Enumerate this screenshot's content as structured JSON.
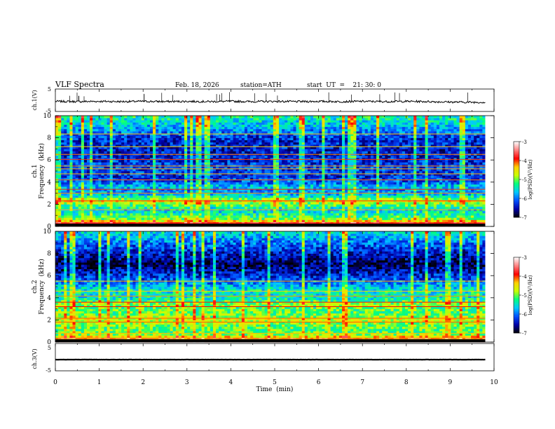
{
  "header": {
    "title": "VLF  Spectra",
    "date": "Feb. 18, 2026",
    "station": "station=ATH",
    "start": "start  UT  =    21: 30: 0"
  },
  "colorbar": {
    "label": "log(PSD)(V²/Hz)",
    "ticks": [
      "-3",
      "-4",
      "-5",
      "-6",
      "-7"
    ],
    "range": [
      -7,
      -3
    ],
    "colors": [
      "#000000",
      "#0000a8",
      "#0050ff",
      "#00c8ff",
      "#00ff80",
      "#c8ff00",
      "#ffd000",
      "#ff0000",
      "#ff8080",
      "#ffffff"
    ]
  },
  "chart_data": [
    {
      "type": "line",
      "title": "",
      "xlabel": "Time  (min)",
      "ylabel": "ch.1(V)",
      "xlim": [
        0,
        9.8
      ],
      "ylim": [
        -5,
        5
      ],
      "y_ticks": [
        "5",
        "-5"
      ],
      "series": [
        {
          "x": [
            0,
            0.5,
            1,
            1.5,
            2,
            2.5,
            3,
            3.5,
            4,
            4.5,
            5,
            5.5,
            6,
            6.5,
            7,
            7.5,
            8,
            8.5,
            9,
            9.5,
            9.8
          ],
          "values": [
            -0.5,
            -0.6,
            -0.5,
            -0.6,
            -0.5,
            -0.6,
            -0.5,
            -0.6,
            -0.5,
            -0.6,
            -0.5,
            -0.6,
            -0.5,
            -0.6,
            -0.5,
            -0.6,
            -0.5,
            -0.6,
            -0.8,
            -0.9,
            -0.9
          ]
        }
      ]
    },
    {
      "type": "heatmap",
      "title": "",
      "ylabel": "Frequency  (kHz)",
      "ylabel_channel": "ch.1",
      "xlim": [
        0,
        9.8
      ],
      "ylim": [
        0,
        10
      ],
      "y_ticks": [
        "0",
        "2",
        "4",
        "6",
        "8",
        "10"
      ],
      "z_label": "log(PSD)(V²/Hz)",
      "z_range": [
        -7,
        -3
      ],
      "profile": [
        {
          "f": 0.3,
          "z": -3.8
        },
        {
          "f": 0.6,
          "z": -4.8
        },
        {
          "f": 1.0,
          "z": -5.3
        },
        {
          "f": 1.5,
          "z": -5.6
        },
        {
          "f": 2.0,
          "z": -5.0
        },
        {
          "f": 2.3,
          "z": -4.6
        },
        {
          "f": 2.8,
          "z": -5.6
        },
        {
          "f": 3.3,
          "z": -5.9
        },
        {
          "f": 3.6,
          "z": -5.6
        },
        {
          "f": 4.0,
          "z": -6.1
        },
        {
          "f": 4.5,
          "z": -6.3
        },
        {
          "f": 5.2,
          "z": -6.2
        },
        {
          "f": 6.0,
          "z": -6.3
        },
        {
          "f": 7.0,
          "z": -6.4
        },
        {
          "f": 8.0,
          "z": -6.3
        },
        {
          "f": 9.0,
          "z": -5.7
        },
        {
          "f": 10.0,
          "z": -5.3
        }
      ],
      "lines_khz": [
        0.3,
        1.5,
        2.3,
        3.0,
        3.35,
        4.2,
        4.75,
        5.2,
        5.45,
        6.05,
        6.5,
        7.2,
        8.35
      ]
    },
    {
      "type": "heatmap",
      "title": "",
      "ylabel": "Frequency  (kHz)",
      "ylabel_channel": "ch.2",
      "xlim": [
        0,
        9.8
      ],
      "ylim": [
        0,
        10
      ],
      "y_ticks": [
        "0",
        "2",
        "4",
        "6",
        "8",
        "10"
      ],
      "z_label": "log(PSD)(V²/Hz)",
      "z_range": [
        -7,
        -3
      ],
      "profile": [
        {
          "f": 0.3,
          "z": -3.8
        },
        {
          "f": 0.6,
          "z": -4.8
        },
        {
          "f": 1.0,
          "z": -5.1
        },
        {
          "f": 1.5,
          "z": -5.0
        },
        {
          "f": 2.0,
          "z": -4.6
        },
        {
          "f": 2.5,
          "z": -5.0
        },
        {
          "f": 3.0,
          "z": -5.1
        },
        {
          "f": 3.5,
          "z": -4.9
        },
        {
          "f": 4.0,
          "z": -5.5
        },
        {
          "f": 4.6,
          "z": -5.4
        },
        {
          "f": 5.3,
          "z": -5.9
        },
        {
          "f": 6.0,
          "z": -6.3
        },
        {
          "f": 7.0,
          "z": -6.8
        },
        {
          "f": 8.0,
          "z": -6.4
        },
        {
          "f": 9.0,
          "z": -6.0
        },
        {
          "f": 10.0,
          "z": -5.5
        }
      ],
      "lines_khz": [
        0.3,
        0.8,
        1.8,
        2.15,
        3.2,
        3.6,
        4.15,
        4.6,
        5.5
      ]
    },
    {
      "type": "line",
      "title": "",
      "xlabel": "Time  (min)",
      "ylabel": "ch.3(V)",
      "xlim": [
        0,
        9.8
      ],
      "ylim": [
        -5,
        5
      ],
      "y_ticks": [
        "5",
        "-5"
      ],
      "x_ticks": [
        "0",
        "1",
        "2",
        "3",
        "4",
        "5",
        "6",
        "7",
        "8",
        "9",
        "10"
      ],
      "series": [
        {
          "x": [
            0,
            1,
            2,
            3,
            4,
            5,
            6,
            7,
            8,
            9,
            9.8
          ],
          "values": [
            -0.9,
            -0.9,
            -0.9,
            -0.9,
            -0.9,
            -0.9,
            -0.9,
            -0.9,
            -0.9,
            -0.9,
            -0.9
          ]
        }
      ]
    }
  ]
}
